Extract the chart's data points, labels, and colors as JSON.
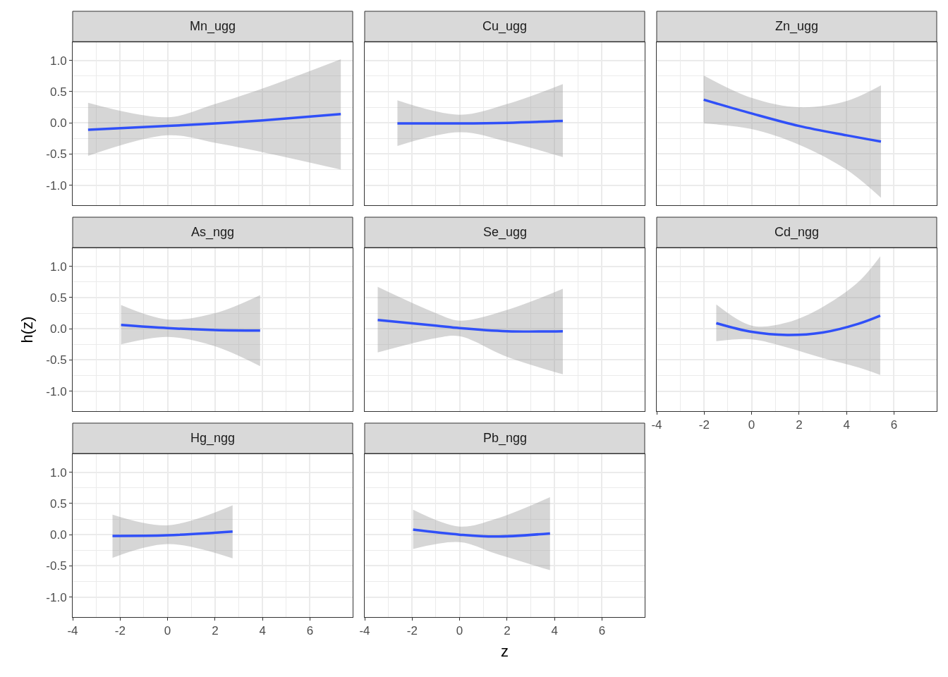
{
  "chart_data": [
    {
      "type": "line",
      "title": "Mn_ugg",
      "x": [
        -3.35,
        0,
        2,
        4,
        7.3
      ],
      "series": [
        {
          "color": "#3050f8",
          "values": [
            -0.11,
            -0.05,
            -0.01,
            0.04,
            0.14
          ],
          "lower": [
            -0.53,
            -0.2,
            -0.32,
            -0.47,
            -0.75
          ],
          "upper": [
            0.32,
            0.09,
            0.3,
            0.55,
            1.02
          ]
        }
      ],
      "xlim": [
        -4,
        7.8
      ],
      "ylim": [
        -1.32,
        1.29
      ],
      "xticks": [
        -4,
        -2,
        0,
        2,
        4,
        6
      ],
      "yticks": [
        {
          "value": -1,
          "label": "-1.0"
        },
        {
          "value": -0.5,
          "label": "-0.5"
        },
        {
          "value": 0,
          "label": "0.0"
        },
        {
          "value": 0.5,
          "label": "0.5"
        },
        {
          "value": 1,
          "label": "1.0"
        }
      ],
      "grid": true,
      "tick_labels": "y"
    },
    {
      "type": "line",
      "title": "Cu_ugg",
      "x": [
        -2.62,
        0,
        2,
        4.35
      ],
      "series": [
        {
          "color": "#3050f8",
          "values": [
            -0.01,
            -0.01,
            0.0,
            0.03
          ],
          "lower": [
            -0.37,
            -0.15,
            -0.3,
            -0.55
          ],
          "upper": [
            0.36,
            0.13,
            0.3,
            0.62
          ]
        }
      ],
      "xlim": [
        -4,
        7.8
      ],
      "ylim": [
        -1.32,
        1.29
      ],
      "xticks": [
        -4,
        -2,
        0,
        2,
        4,
        6
      ],
      "yticks": [
        -1,
        -0.5,
        0,
        0.5,
        1
      ],
      "grid": true,
      "tick_labels": false
    },
    {
      "type": "line",
      "title": "Zn_ugg",
      "x": [
        -2.02,
        0,
        2,
        4,
        5.45
      ],
      "series": [
        {
          "color": "#3050f8",
          "values": [
            0.37,
            0.15,
            -0.05,
            -0.2,
            -0.3
          ],
          "lower": [
            -0.01,
            -0.1,
            -0.35,
            -0.75,
            -1.2
          ],
          "upper": [
            0.76,
            0.4,
            0.25,
            0.35,
            0.6
          ]
        }
      ],
      "xlim": [
        -4,
        7.8
      ],
      "ylim": [
        -1.32,
        1.29
      ],
      "xticks": [
        -4,
        -2,
        0,
        2,
        4,
        6
      ],
      "yticks": [
        -1,
        -0.5,
        0,
        0.5,
        1
      ],
      "grid": true,
      "tick_labels": false
    },
    {
      "type": "line",
      "title": "As_ngg",
      "ylabel": "h(z)",
      "x": [
        -1.96,
        0,
        2,
        3.9
      ],
      "series": [
        {
          "color": "#3050f8",
          "values": [
            0.06,
            0.01,
            -0.02,
            -0.03
          ],
          "lower": [
            -0.25,
            -0.13,
            -0.28,
            -0.6
          ],
          "upper": [
            0.38,
            0.15,
            0.25,
            0.54
          ]
        }
      ],
      "xlim": [
        -4,
        7.8
      ],
      "ylim": [
        -1.32,
        1.29
      ],
      "xticks": [
        -4,
        -2,
        0,
        2,
        4,
        6
      ],
      "yticks": [
        {
          "value": -1,
          "label": "-1.0"
        },
        {
          "value": -0.5,
          "label": "-0.5"
        },
        {
          "value": 0,
          "label": "0.0"
        },
        {
          "value": 0.5,
          "label": "0.5"
        },
        {
          "value": 1,
          "label": "1.0"
        }
      ],
      "grid": true,
      "tick_labels": "y"
    },
    {
      "type": "line",
      "title": "Se_ugg",
      "x": [
        -3.45,
        -1,
        0,
        2,
        4.35
      ],
      "series": [
        {
          "color": "#3050f8",
          "values": [
            0.14,
            0.05,
            0.01,
            -0.04,
            -0.04
          ],
          "lower": [
            -0.38,
            -0.15,
            -0.12,
            -0.45,
            -0.73
          ],
          "upper": [
            0.67,
            0.25,
            0.13,
            0.3,
            0.64
          ]
        }
      ],
      "xlim": [
        -4,
        7.8
      ],
      "ylim": [
        -1.32,
        1.29
      ],
      "xticks": [
        -4,
        -2,
        0,
        2,
        4,
        6
      ],
      "yticks": [
        -1,
        -0.5,
        0,
        0.5,
        1
      ],
      "grid": true,
      "tick_labels": false
    },
    {
      "type": "line",
      "title": "Cd_ngg",
      "x": [
        -1.49,
        0,
        1.5,
        3,
        4.5,
        5.42
      ],
      "series": [
        {
          "color": "#3050f8",
          "values": [
            0.09,
            -0.05,
            -0.1,
            -0.06,
            0.08,
            0.21
          ],
          "lower": [
            -0.2,
            -0.17,
            -0.3,
            -0.47,
            -0.62,
            -0.74
          ],
          "upper": [
            0.39,
            0.05,
            0.1,
            0.35,
            0.75,
            1.16
          ]
        }
      ],
      "xlim": [
        -4,
        7.8
      ],
      "ylim": [
        -1.32,
        1.29
      ],
      "xticks": [
        -4,
        -2,
        0,
        2,
        4,
        6
      ],
      "yticks": [
        -1,
        -0.5,
        0,
        0.5,
        1
      ],
      "grid": true,
      "tick_labels": "x"
    },
    {
      "type": "line",
      "title": "Hg_ngg",
      "x": [
        -2.32,
        0,
        2.74
      ],
      "series": [
        {
          "color": "#3050f8",
          "values": [
            -0.02,
            -0.01,
            0.05
          ],
          "lower": [
            -0.37,
            -0.15,
            -0.38
          ],
          "upper": [
            0.32,
            0.15,
            0.47
          ]
        }
      ],
      "xlim": [
        -4,
        7.8
      ],
      "ylim": [
        -1.32,
        1.29
      ],
      "xticks": [
        -4,
        -2,
        0,
        2,
        4,
        6
      ],
      "yticks": [
        {
          "value": -1,
          "label": "-1.0"
        },
        {
          "value": -0.5,
          "label": "-0.5"
        },
        {
          "value": 0,
          "label": "0.0"
        },
        {
          "value": 0.5,
          "label": "0.5"
        },
        {
          "value": 1,
          "label": "1.0"
        }
      ],
      "grid": true
    },
    {
      "type": "line",
      "title": "Pb_ngg",
      "xlabel": "z",
      "x": [
        -1.96,
        0,
        1.5,
        3.81
      ],
      "series": [
        {
          "color": "#3050f8",
          "values": [
            0.08,
            0.0,
            -0.03,
            0.02
          ],
          "lower": [
            -0.23,
            -0.12,
            -0.3,
            -0.57
          ],
          "upper": [
            0.4,
            0.13,
            0.25,
            0.6
          ]
        }
      ],
      "xlim": [
        -4,
        7.8
      ],
      "ylim": [
        -1.32,
        1.29
      ],
      "xticks": [
        -4,
        -2,
        0,
        2,
        4,
        6
      ],
      "yticks": [
        -1,
        -0.5,
        0,
        0.5,
        1
      ],
      "grid": true,
      "tick_labels": "x"
    }
  ]
}
